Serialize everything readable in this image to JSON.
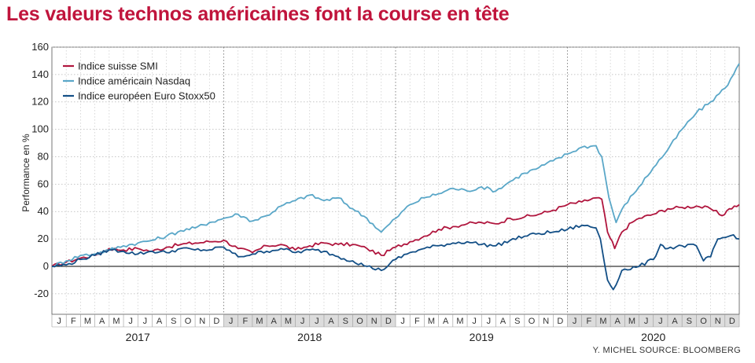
{
  "title": "Les valeurs technos américaines font la course en tête",
  "credit": "Y. MICHEL   SOURCE: BLOOMBERG",
  "colors": {
    "title": "#c0143c",
    "smi": "#b0163e",
    "nasdaq": "#5aa7c8",
    "stoxx": "#134f86",
    "band": "#dcdcdc"
  },
  "chart_data": {
    "type": "line",
    "title": "Les valeurs technos américaines font la course en tête",
    "ylabel": "Performance en %",
    "ylim": [
      -35,
      160
    ],
    "yticks": [
      160,
      140,
      120,
      100,
      80,
      60,
      40,
      20,
      0,
      -20
    ],
    "grid": "dotted",
    "legend_position": "top-left",
    "x_months": [
      "J",
      "F",
      "M",
      "A",
      "M",
      "J",
      "J",
      "A",
      "S",
      "O",
      "N",
      "D",
      "J",
      "F",
      "M",
      "A",
      "M",
      "J",
      "J",
      "A",
      "S",
      "O",
      "N",
      "D",
      "J",
      "F",
      "M",
      "A",
      "M",
      "J",
      "J",
      "A",
      "S",
      "O",
      "N",
      "D",
      "J",
      "F",
      "M",
      "A",
      "M",
      "J",
      "J",
      "A",
      "S",
      "O",
      "N",
      "D"
    ],
    "years": [
      "2017",
      "2018",
      "2019",
      "2020"
    ],
    "series": [
      {
        "name": "Indice suisse SMI",
        "key": "smi",
        "values": [
          [
            0,
            0
          ],
          [
            1,
            3
          ],
          [
            2,
            6
          ],
          [
            3,
            8
          ],
          [
            4,
            13
          ],
          [
            5,
            12
          ],
          [
            6,
            13
          ],
          [
            7,
            11
          ],
          [
            8,
            14
          ],
          [
            9,
            16
          ],
          [
            10,
            17
          ],
          [
            11,
            18
          ],
          [
            12,
            19
          ],
          [
            13,
            13
          ],
          [
            14,
            10
          ],
          [
            15,
            15
          ],
          [
            16,
            16
          ],
          [
            17,
            12
          ],
          [
            18,
            15
          ],
          [
            19,
            17
          ],
          [
            20,
            16
          ],
          [
            21,
            16
          ],
          [
            22,
            13
          ],
          [
            23,
            8
          ],
          [
            24,
            14
          ],
          [
            25,
            18
          ],
          [
            26,
            22
          ],
          [
            27,
            27
          ],
          [
            28,
            29
          ],
          [
            29,
            31
          ],
          [
            30,
            32
          ],
          [
            31,
            31
          ],
          [
            32,
            35
          ],
          [
            33,
            36
          ],
          [
            34,
            38
          ],
          [
            35,
            41
          ],
          [
            36,
            45
          ],
          [
            37,
            47
          ],
          [
            38,
            50
          ],
          [
            38.4,
            49
          ],
          [
            38.8,
            25
          ],
          [
            39.3,
            13
          ],
          [
            39.8,
            25
          ],
          [
            40.5,
            32
          ],
          [
            41,
            35
          ],
          [
            42,
            38
          ],
          [
            43,
            42
          ],
          [
            44,
            43
          ],
          [
            45,
            44
          ],
          [
            46,
            42
          ],
          [
            46.8,
            37
          ],
          [
            47.3,
            42
          ],
          [
            48,
            45
          ]
        ]
      },
      {
        "name": "Indice américain Nasdaq",
        "key": "nasdaq",
        "values": [
          [
            0,
            0
          ],
          [
            1,
            4
          ],
          [
            2,
            8
          ],
          [
            3,
            9
          ],
          [
            4,
            12
          ],
          [
            5,
            15
          ],
          [
            6,
            17
          ],
          [
            7,
            19
          ],
          [
            8,
            22
          ],
          [
            9,
            26
          ],
          [
            10,
            28
          ],
          [
            11,
            32
          ],
          [
            12,
            35
          ],
          [
            13,
            38
          ],
          [
            14,
            33
          ],
          [
            15,
            37
          ],
          [
            16,
            44
          ],
          [
            17,
            48
          ],
          [
            18,
            52
          ],
          [
            19,
            48
          ],
          [
            20,
            50
          ],
          [
            21,
            42
          ],
          [
            22,
            35
          ],
          [
            23,
            25
          ],
          [
            24,
            35
          ],
          [
            25,
            45
          ],
          [
            26,
            50
          ],
          [
            27,
            53
          ],
          [
            28,
            57
          ],
          [
            29,
            55
          ],
          [
            30,
            58
          ],
          [
            31,
            55
          ],
          [
            32,
            62
          ],
          [
            33,
            68
          ],
          [
            34,
            72
          ],
          [
            35,
            77
          ],
          [
            36,
            82
          ],
          [
            37,
            87
          ],
          [
            38,
            88
          ],
          [
            38.4,
            80
          ],
          [
            38.9,
            50
          ],
          [
            39.4,
            32
          ],
          [
            40,
            45
          ],
          [
            41,
            58
          ],
          [
            42,
            72
          ],
          [
            43,
            85
          ],
          [
            44,
            100
          ],
          [
            45,
            112
          ],
          [
            46,
            120
          ],
          [
            47,
            130
          ],
          [
            47.6,
            140
          ],
          [
            48,
            148
          ]
        ]
      },
      {
        "name": "Indice européen Euro Stoxx50",
        "key": "stoxx",
        "values": [
          [
            0,
            0
          ],
          [
            1,
            1
          ],
          [
            2,
            5
          ],
          [
            3,
            8
          ],
          [
            4,
            12
          ],
          [
            5,
            11
          ],
          [
            6,
            9
          ],
          [
            7,
            11
          ],
          [
            8,
            10
          ],
          [
            9,
            13
          ],
          [
            10,
            12
          ],
          [
            11,
            12
          ],
          [
            12,
            14
          ],
          [
            13,
            7
          ],
          [
            14,
            9
          ],
          [
            15,
            11
          ],
          [
            16,
            13
          ],
          [
            17,
            10
          ],
          [
            18,
            12
          ],
          [
            19,
            11
          ],
          [
            20,
            7
          ],
          [
            21,
            4
          ],
          [
            22,
            0
          ],
          [
            23,
            -3
          ],
          [
            24,
            5
          ],
          [
            25,
            10
          ],
          [
            26,
            13
          ],
          [
            27,
            15
          ],
          [
            28,
            17
          ],
          [
            29,
            18
          ],
          [
            30,
            16
          ],
          [
            31,
            15
          ],
          [
            32,
            19
          ],
          [
            33,
            22
          ],
          [
            34,
            24
          ],
          [
            35,
            25
          ],
          [
            36,
            27
          ],
          [
            37,
            30
          ],
          [
            38,
            28
          ],
          [
            38.3,
            20
          ],
          [
            38.8,
            -10
          ],
          [
            39.2,
            -17
          ],
          [
            39.8,
            -3
          ],
          [
            41,
            0
          ],
          [
            42,
            5
          ],
          [
            42.5,
            16
          ],
          [
            43,
            13
          ],
          [
            44,
            15
          ],
          [
            45,
            15
          ],
          [
            45.5,
            4
          ],
          [
            46,
            7
          ],
          [
            46.5,
            20
          ],
          [
            47,
            21
          ],
          [
            47.6,
            23
          ],
          [
            48,
            20
          ]
        ]
      }
    ]
  }
}
